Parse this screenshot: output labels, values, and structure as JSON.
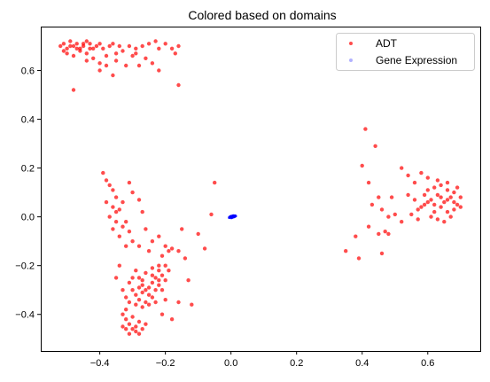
{
  "chart_data": {
    "type": "scatter",
    "title": "Colored based on domains",
    "xlabel": "",
    "ylabel": "",
    "xlim": [
      -0.58,
      0.76
    ],
    "ylim": [
      -0.55,
      0.78
    ],
    "x_ticks": [
      -0.4,
      -0.2,
      0.0,
      0.2,
      0.4,
      0.6
    ],
    "x_tick_labels": [
      "−0.4",
      "−0.2",
      "0.0",
      "0.2",
      "0.4",
      "0.6"
    ],
    "y_ticks": [
      -0.4,
      -0.2,
      0.0,
      0.2,
      0.4,
      0.6
    ],
    "y_tick_labels": [
      "−0.4",
      "−0.2",
      "0.0",
      "0.2",
      "0.4",
      "0.6"
    ],
    "grid": false,
    "legend_position": "top-right",
    "series": [
      {
        "name": "ADT",
        "color": "#ff0000",
        "opacity": 0.7,
        "points": [
          [
            -0.52,
            0.7
          ],
          [
            -0.51,
            0.71
          ],
          [
            -0.5,
            0.69
          ],
          [
            -0.49,
            0.72
          ],
          [
            -0.48,
            0.7
          ],
          [
            -0.47,
            0.71
          ],
          [
            -0.46,
            0.69
          ],
          [
            -0.45,
            0.7
          ],
          [
            -0.44,
            0.72
          ],
          [
            -0.43,
            0.71
          ],
          [
            -0.5,
            0.67
          ],
          [
            -0.48,
            0.66
          ],
          [
            -0.46,
            0.68
          ],
          [
            -0.44,
            0.67
          ],
          [
            -0.42,
            0.69
          ],
          [
            -0.51,
            0.68
          ],
          [
            -0.49,
            0.7
          ],
          [
            -0.47,
            0.69
          ],
          [
            -0.45,
            0.71
          ],
          [
            -0.43,
            0.69
          ],
          [
            -0.41,
            0.7
          ],
          [
            -0.4,
            0.71
          ],
          [
            -0.39,
            0.69
          ],
          [
            -0.37,
            0.7
          ],
          [
            -0.36,
            0.71
          ],
          [
            -0.34,
            0.7
          ],
          [
            -0.33,
            0.68
          ],
          [
            -0.31,
            0.7
          ],
          [
            -0.29,
            0.69
          ],
          [
            -0.27,
            0.7
          ],
          [
            -0.25,
            0.71
          ],
          [
            -0.23,
            0.72
          ],
          [
            -0.22,
            0.69
          ],
          [
            -0.2,
            0.71
          ],
          [
            -0.18,
            0.69
          ],
          [
            -0.16,
            0.7
          ],
          [
            -0.42,
            0.65
          ],
          [
            -0.44,
            0.64
          ],
          [
            -0.4,
            0.63
          ],
          [
            -0.38,
            0.66
          ],
          [
            -0.35,
            0.64
          ],
          [
            -0.32,
            0.62
          ],
          [
            -0.3,
            0.66
          ],
          [
            -0.28,
            0.62
          ],
          [
            -0.26,
            0.65
          ],
          [
            -0.24,
            0.63
          ],
          [
            -0.22,
            0.6
          ],
          [
            -0.4,
            0.6
          ],
          [
            -0.36,
            0.58
          ],
          [
            -0.48,
            0.52
          ],
          [
            -0.17,
            0.67
          ],
          [
            -0.16,
            0.54
          ],
          [
            -0.29,
            0.67
          ],
          [
            -0.35,
            0.67
          ],
          [
            -0.38,
            0.62
          ],
          [
            -0.39,
            0.18
          ],
          [
            -0.38,
            0.15
          ],
          [
            -0.37,
            0.13
          ],
          [
            -0.36,
            0.11
          ],
          [
            -0.35,
            0.08
          ],
          [
            -0.38,
            0.06
          ],
          [
            -0.36,
            0.04
          ],
          [
            -0.35,
            0.02
          ],
          [
            -0.37,
            0.0
          ],
          [
            -0.34,
            0.03
          ],
          [
            -0.33,
            0.06
          ],
          [
            -0.32,
            -0.02
          ],
          [
            -0.33,
            -0.04
          ],
          [
            -0.31,
            -0.06
          ],
          [
            -0.34,
            -0.08
          ],
          [
            -0.3,
            -0.1
          ],
          [
            -0.32,
            -0.12
          ],
          [
            -0.35,
            -0.02
          ],
          [
            -0.36,
            -0.05
          ],
          [
            -0.31,
            0.14
          ],
          [
            -0.3,
            0.1
          ],
          [
            -0.28,
            0.07
          ],
          [
            -0.27,
            0.02
          ],
          [
            -0.26,
            -0.05
          ],
          [
            -0.28,
            -0.12
          ],
          [
            -0.25,
            -0.14
          ],
          [
            -0.24,
            -0.1
          ],
          [
            -0.22,
            -0.08
          ],
          [
            -0.2,
            -0.12
          ],
          [
            -0.21,
            -0.16
          ],
          [
            -0.19,
            -0.14
          ],
          [
            -0.18,
            -0.13
          ],
          [
            -0.16,
            -0.14
          ],
          [
            -0.15,
            -0.05
          ],
          [
            -0.14,
            -0.17
          ],
          [
            -0.1,
            -0.07
          ],
          [
            -0.08,
            -0.13
          ],
          [
            -0.05,
            0.14
          ],
          [
            -0.06,
            0.01
          ],
          [
            -0.13,
            -0.26
          ],
          [
            -0.12,
            -0.36
          ],
          [
            -0.18,
            -0.42
          ],
          [
            -0.21,
            -0.4
          ],
          [
            -0.16,
            -0.35
          ],
          [
            -0.2,
            -0.34
          ],
          [
            -0.29,
            -0.22
          ],
          [
            -0.28,
            -0.25
          ],
          [
            -0.27,
            -0.28
          ],
          [
            -0.26,
            -0.3
          ],
          [
            -0.25,
            -0.32
          ],
          [
            -0.24,
            -0.27
          ],
          [
            -0.23,
            -0.25
          ],
          [
            -0.22,
            -0.22
          ],
          [
            -0.21,
            -0.24
          ],
          [
            -0.2,
            -0.26
          ],
          [
            -0.3,
            -0.3
          ],
          [
            -0.29,
            -0.32
          ],
          [
            -0.28,
            -0.34
          ],
          [
            -0.27,
            -0.31
          ],
          [
            -0.26,
            -0.35
          ],
          [
            -0.25,
            -0.29
          ],
          [
            -0.24,
            -0.33
          ],
          [
            -0.23,
            -0.3
          ],
          [
            -0.22,
            -0.28
          ],
          [
            -0.21,
            -0.3
          ],
          [
            -0.31,
            -0.27
          ],
          [
            -0.3,
            -0.25
          ],
          [
            -0.32,
            -0.33
          ],
          [
            -0.33,
            -0.3
          ],
          [
            -0.31,
            -0.35
          ],
          [
            -0.29,
            -0.36
          ],
          [
            -0.27,
            -0.37
          ],
          [
            -0.25,
            -0.36
          ],
          [
            -0.23,
            -0.35
          ],
          [
            -0.28,
            -0.29
          ],
          [
            -0.27,
            -0.26
          ],
          [
            -0.26,
            -0.23
          ],
          [
            -0.24,
            -0.24
          ],
          [
            -0.22,
            -0.26
          ],
          [
            -0.19,
            -0.22
          ],
          [
            -0.2,
            -0.2
          ],
          [
            -0.22,
            -0.2
          ],
          [
            -0.24,
            -0.21
          ],
          [
            -0.35,
            -0.25
          ],
          [
            -0.34,
            -0.2
          ],
          [
            -0.33,
            -0.4
          ],
          [
            -0.32,
            -0.42
          ],
          [
            -0.31,
            -0.44
          ],
          [
            -0.3,
            -0.46
          ],
          [
            -0.29,
            -0.45
          ],
          [
            -0.28,
            -0.43
          ],
          [
            -0.3,
            -0.41
          ],
          [
            -0.32,
            -0.46
          ],
          [
            -0.31,
            -0.48
          ],
          [
            -0.29,
            -0.47
          ],
          [
            -0.27,
            -0.46
          ],
          [
            -0.33,
            -0.45
          ],
          [
            -0.28,
            -0.48
          ],
          [
            -0.26,
            -0.44
          ],
          [
            -0.32,
            -0.38
          ],
          [
            0.35,
            -0.14
          ],
          [
            0.38,
            -0.08
          ],
          [
            0.39,
            -0.17
          ],
          [
            0.4,
            0.21
          ],
          [
            0.42,
            0.14
          ],
          [
            0.41,
            0.36
          ],
          [
            0.44,
            0.29
          ],
          [
            0.42,
            -0.04
          ],
          [
            0.45,
            -0.07
          ],
          [
            0.46,
            -0.15
          ],
          [
            0.47,
            -0.06
          ],
          [
            0.48,
            0.0
          ],
          [
            0.45,
            0.08
          ],
          [
            0.43,
            0.05
          ],
          [
            0.46,
            0.03
          ],
          [
            0.48,
            -0.07
          ],
          [
            0.5,
            0.01
          ],
          [
            0.49,
            0.08
          ],
          [
            0.52,
            0.2
          ],
          [
            0.54,
            0.17
          ],
          [
            0.56,
            0.14
          ],
          [
            0.58,
            0.18
          ],
          [
            0.6,
            0.16
          ],
          [
            0.52,
            -0.02
          ],
          [
            0.55,
            0.01
          ],
          [
            0.57,
            0.03
          ],
          [
            0.59,
            0.05
          ],
          [
            0.61,
            0.07
          ],
          [
            0.63,
            0.09
          ],
          [
            0.65,
            0.06
          ],
          [
            0.67,
            0.08
          ],
          [
            0.69,
            0.05
          ],
          [
            0.62,
            0.02
          ],
          [
            0.64,
            0.04
          ],
          [
            0.66,
            0.02
          ],
          [
            0.68,
            0.03
          ],
          [
            0.6,
            0.11
          ],
          [
            0.62,
            0.12
          ],
          [
            0.64,
            0.13
          ],
          [
            0.66,
            0.11
          ],
          [
            0.68,
            0.1
          ],
          [
            0.7,
            0.08
          ],
          [
            0.61,
            0.0
          ],
          [
            0.63,
            -0.01
          ],
          [
            0.65,
            -0.02
          ],
          [
            0.67,
            0.0
          ],
          [
            0.58,
            0.04
          ],
          [
            0.6,
            0.06
          ],
          [
            0.56,
            0.07
          ],
          [
            0.54,
            0.09
          ],
          [
            0.66,
            0.07
          ],
          [
            0.64,
            0.08
          ],
          [
            0.62,
            0.05
          ],
          [
            0.68,
            0.06
          ],
          [
            0.7,
            0.04
          ],
          [
            0.63,
            0.15
          ],
          [
            0.66,
            0.14
          ],
          [
            0.69,
            0.12
          ],
          [
            0.59,
            0.09
          ],
          [
            0.57,
            -0.01
          ]
        ]
      },
      {
        "name": "Gene Expression",
        "color": "#0000ff",
        "opacity": 0.3,
        "points": [
          [
            -0.005,
            -0.003
          ],
          [
            0.0,
            0.0
          ],
          [
            0.004,
            -0.002
          ],
          [
            0.008,
            0.002
          ],
          [
            0.012,
            0.004
          ],
          [
            0.002,
            0.003
          ],
          [
            0.006,
            -0.001
          ],
          [
            -0.002,
            0.001
          ],
          [
            0.01,
            0.0
          ],
          [
            0.014,
            0.003
          ],
          [
            0.001,
            -0.004
          ],
          [
            0.007,
            0.005
          ]
        ]
      }
    ]
  }
}
